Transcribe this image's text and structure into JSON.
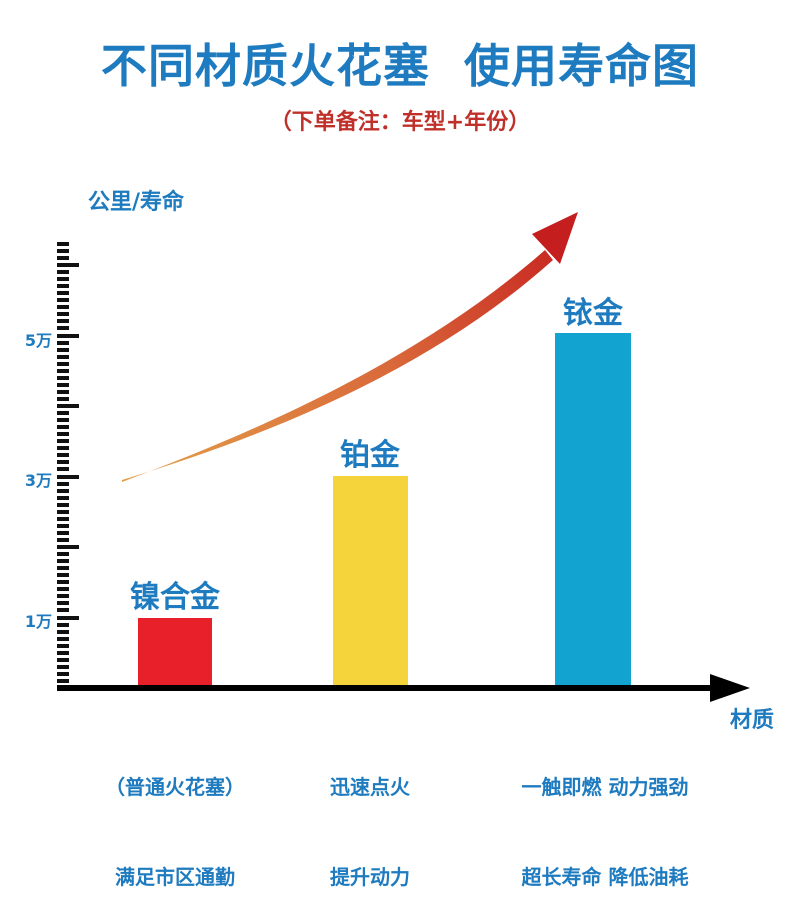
{
  "header": {
    "title": "不同材质火花塞  使用寿命图",
    "subtitle": "（下单备注：车型+年份）"
  },
  "axes": {
    "ylabel": "公里/寿命",
    "xlabel": "材质",
    "ytick_labels": [
      "1万",
      "3万",
      "5万"
    ]
  },
  "bars": [
    {
      "name": "镍合金",
      "value": 10000,
      "color": "#E8202A",
      "desc_line1": "（普通火花塞）",
      "desc_line2": "满足市区通勤"
    },
    {
      "name": "铂金",
      "value": 30000,
      "color": "#F4D43A",
      "desc_line1": "迅速点火",
      "desc_line2": "提升动力"
    },
    {
      "name": "铱金",
      "value": 50000,
      "color": "#12A3D1",
      "desc_line1": "一触即燃 动力强劲",
      "desc_line2": "超长寿命 降低油耗"
    }
  ],
  "colors": {
    "title": "#1E7BBF",
    "subtitle": "#C0302A",
    "trend_start": "#E3A04A",
    "trend_end": "#C51E1E"
  },
  "chart_data": {
    "type": "bar",
    "title": "不同材质火花塞 使用寿命图",
    "subtitle": "（下单备注：车型+年份）",
    "categories": [
      "镍合金",
      "铂金",
      "铱金"
    ],
    "values": [
      10000,
      30000,
      50000
    ],
    "colors": [
      "#E8202A",
      "#F4D43A",
      "#12A3D1"
    ],
    "xlabel": "材质",
    "ylabel": "公里/寿命",
    "ylim": [
      0,
      70000
    ],
    "yticks_labeled": {
      "10000": "1万",
      "30000": "3万",
      "50000": "5万"
    },
    "major_tick_interval": 10000,
    "minor_tick_interval": 1000,
    "category_descriptions": [
      "（普通火花塞）满足市区通勤",
      "迅速点火 提升动力",
      "一触即燃 动力强劲 超长寿命 降低油耗"
    ],
    "annotations": [
      "upward curved trend arrow (orange to red) indicating increasing lifespan"
    ],
    "grid": false,
    "legend": "none"
  }
}
